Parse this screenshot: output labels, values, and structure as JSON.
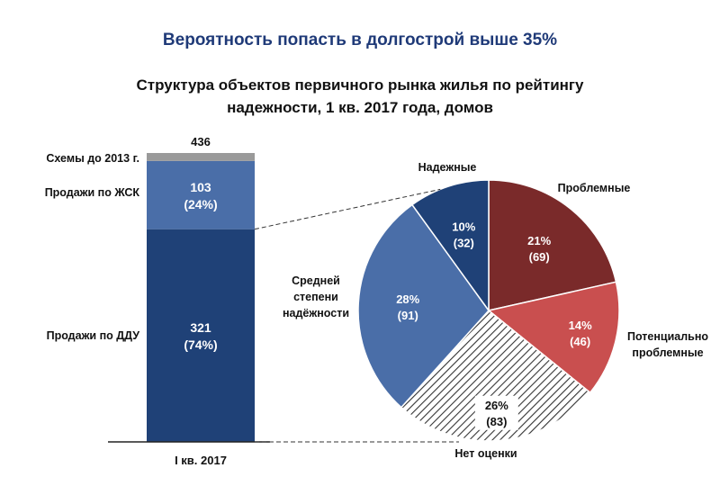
{
  "headline": "Вероятность попасть в долгострой выше 35%",
  "subtitle_lines": [
    "Структура объектов первичного рынка жилья по рейтингу",
    "надежности, 1 кв. 2017 года, домов"
  ],
  "colors": {
    "ddu": "#1f4177",
    "zhsk": "#4a6ea8",
    "schemes": "#9a9a9a",
    "reliable": "#1f4177",
    "problematic": "#7a2a2a",
    "potentially_problematic": "#c94f4f",
    "no_rating": "hatched",
    "medium": "#4a6ea8"
  },
  "chart_data": [
    {
      "type": "bar",
      "stacked": true,
      "categories": [
        "I кв. 2017"
      ],
      "total_label": "436",
      "total": 436,
      "series": [
        {
          "name": "Продажи по ДДУ",
          "values": [
            321
          ],
          "value_label": "321",
          "pct_label": "(74%)"
        },
        {
          "name": "Продажи по ЖСК",
          "values": [
            103
          ],
          "value_label": "103",
          "pct_label": "(24%)"
        },
        {
          "name": "Схемы до 2013 г.",
          "values": [
            12
          ]
        }
      ]
    },
    {
      "type": "pie",
      "slices": [
        {
          "name": "Проблемные",
          "value": 69,
          "pct_label": "21%",
          "count_label": "(69)"
        },
        {
          "name": "Потенциально проблемные",
          "name_lines": [
            "Потенциально",
            "проблемные"
          ],
          "value": 46,
          "pct_label": "14%",
          "count_label": "(46)"
        },
        {
          "name": "Нет оценки",
          "value": 83,
          "pct_label": "26%",
          "count_label": "(83)"
        },
        {
          "name": "Средней степени надёжности",
          "name_lines": [
            "Средней",
            "степени",
            "надёжности"
          ],
          "value": 91,
          "pct_label": "28%",
          "count_label": "(91)"
        },
        {
          "name": "Надежные",
          "value": 32,
          "pct_label": "10%",
          "count_label": "(32)"
        }
      ]
    }
  ]
}
